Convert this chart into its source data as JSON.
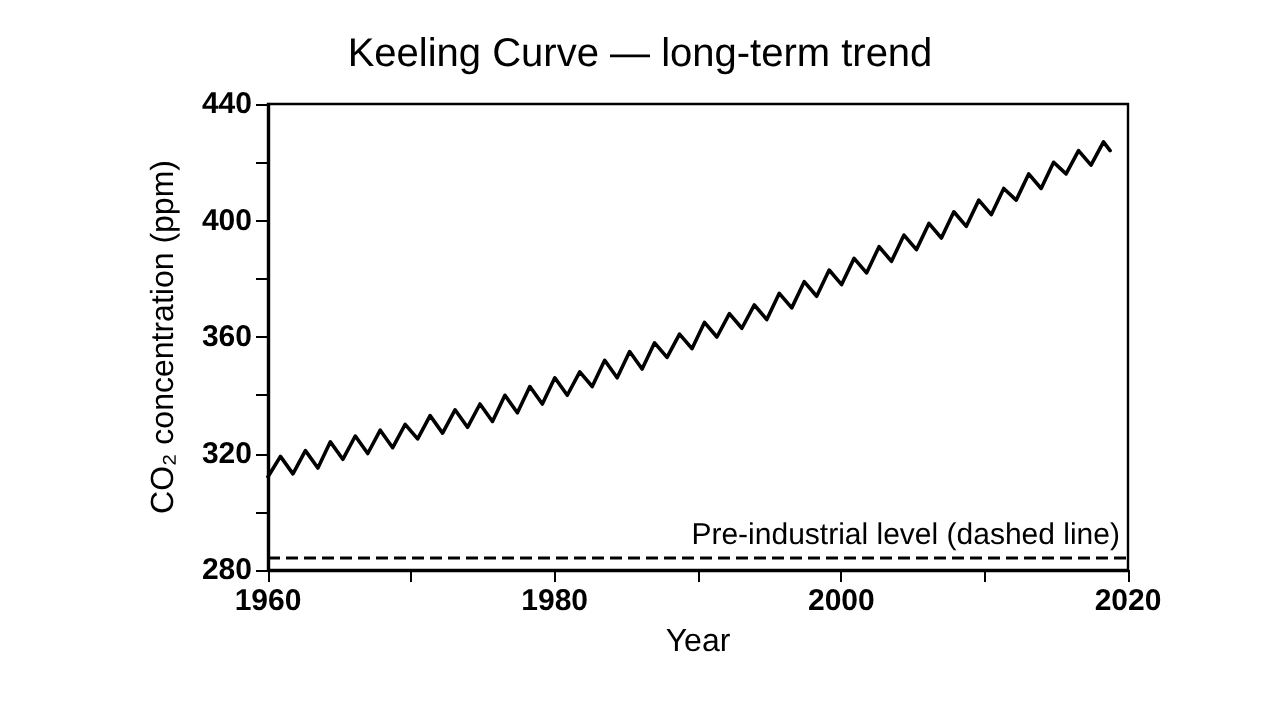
{
  "chart_data": {
    "type": "line",
    "title": "Keeling Curve — long-term trend",
    "xlabel": "Year",
    "ylabel": "CO₂ concentration (ppm)",
    "x": [
      1960,
      1960.87,
      1961.74,
      1962.61,
      1963.48,
      1964.35,
      1965.22,
      1966.09,
      1966.96,
      1967.83,
      1968.7,
      1969.57,
      1970.44,
      1971.31,
      1972.18,
      1973.05,
      1973.92,
      1974.79,
      1975.66,
      1976.53,
      1977.4,
      1978.27,
      1979.14,
      1980.01,
      1980.88,
      1981.75,
      1982.62,
      1983.49,
      1984.36,
      1985.23,
      1986.1,
      1986.97,
      1987.84,
      1988.71,
      1989.58,
      1990.45,
      1991.32,
      1992.19,
      1993.06,
      1993.93,
      1994.8,
      1995.67,
      1996.54,
      1997.41,
      1998.28,
      1999.15,
      2000.02,
      2000.89,
      2001.76,
      2002.63,
      2003.5,
      2004.37,
      2005.24,
      2006.11,
      2006.98,
      2007.85,
      2008.72,
      2009.59,
      2010.46,
      2011.33,
      2012.2,
      2013.07,
      2013.94,
      2014.81,
      2015.68,
      2016.55,
      2017.42,
      2018.29,
      2018.75
    ],
    "series": [
      {
        "color": "#000000",
        "values": [
          312,
          319,
          313,
          321,
          315,
          324,
          318,
          326,
          320,
          328,
          322,
          330,
          325,
          333,
          327,
          335,
          329,
          337,
          331,
          340,
          334,
          343,
          337,
          346,
          340,
          348,
          343,
          352,
          346,
          355,
          349,
          358,
          353,
          361,
          356,
          365,
          360,
          368,
          363,
          371,
          366,
          375,
          370,
          379,
          374,
          383,
          378,
          387,
          382,
          391,
          386,
          395,
          390,
          399,
          394,
          403,
          398,
          407,
          402,
          411,
          407,
          416,
          411,
          420,
          416,
          424,
          419,
          427,
          424
        ]
      }
    ],
    "xlim": [
      1960,
      2020
    ],
    "xticks": [
      1960,
      {
        "value": 1970,
        "label": null
      },
      1980,
      {
        "value": 1990,
        "label": null
      },
      2000,
      {
        "value": 2010,
        "label": null
      },
      2020
    ],
    "ylim": [
      280,
      440
    ],
    "yticks": [
      280,
      {
        "value": 300,
        "label": null
      },
      320,
      {
        "value": 340,
        "label": null
      },
      360,
      {
        "value": 380,
        "label": null
      },
      400,
      {
        "value": 420,
        "label": null
      },
      440
    ],
    "ref_lines": [
      {
        "axis": "y",
        "value": 284,
        "label": "Pre-industrial level (dashed line)",
        "color": "#000000",
        "line_style": "dashed"
      }
    ],
    "grid": false,
    "marker": "none",
    "line_style": "solid"
  }
}
